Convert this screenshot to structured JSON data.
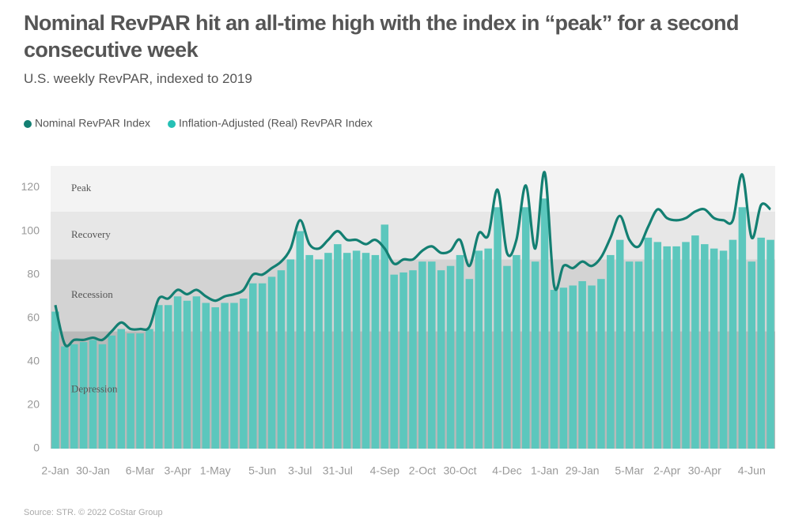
{
  "chart_data": {
    "type": "bar",
    "title": "Nominal RevPAR hit an all-time high with the index in “peak” for a second consecutive week",
    "subtitle": "U.S. weekly RevPAR, indexed to 2019",
    "source": "Source: STR. © 2022 CoStar Group",
    "categories": [
      "2-Jan",
      null,
      null,
      null,
      "30-Jan",
      null,
      null,
      null,
      null,
      "6-Mar",
      null,
      null,
      null,
      "3-Apr",
      null,
      null,
      null,
      "1-May",
      null,
      null,
      null,
      null,
      "5-Jun",
      null,
      null,
      null,
      "3-Jul",
      null,
      null,
      null,
      "31-Jul",
      null,
      null,
      null,
      null,
      "4-Sep",
      null,
      null,
      null,
      "2-Oct",
      null,
      null,
      null,
      "30-Oct",
      null,
      null,
      null,
      null,
      "4-Dec",
      null,
      null,
      null,
      "1-Jan",
      null,
      null,
      null,
      "29-Jan",
      null,
      null,
      null,
      null,
      "5-Mar",
      null,
      null,
      null,
      "2-Apr",
      null,
      null,
      null,
      "30-Apr",
      null,
      null,
      null,
      null,
      "4-Jun",
      null,
      null
    ],
    "series": [
      {
        "name": "Nominal RevPAR Index",
        "type": "line",
        "color": "#137f72",
        "values": [
          66,
          48,
          50,
          50,
          51,
          50,
          54,
          58,
          55,
          55,
          56,
          69,
          69,
          73,
          71,
          73,
          70,
          68,
          70,
          71,
          73,
          80,
          80,
          83,
          86,
          92,
          105,
          94,
          92,
          96,
          100,
          96,
          96,
          94,
          96,
          92,
          85,
          87,
          87,
          91,
          93,
          90,
          91,
          96,
          84,
          99,
          98,
          119,
          90,
          96,
          121,
          92,
          127,
          75,
          84,
          83,
          86,
          84,
          88,
          97,
          107,
          96,
          93,
          102,
          110,
          106,
          105,
          106,
          109,
          110,
          106,
          105,
          105,
          126,
          97,
          112,
          110
        ]
      },
      {
        "name": "Inflation-Adjusted (Real) RevPAR Index",
        "type": "bar",
        "color": "#5cc7bd",
        "values": [
          63,
          47,
          48,
          49,
          50,
          48,
          52,
          55,
          53,
          53,
          55,
          66,
          66,
          70,
          68,
          70,
          67,
          65,
          67,
          67,
          69,
          76,
          76,
          79,
          82,
          87,
          100,
          89,
          87,
          90,
          94,
          90,
          91,
          90,
          89,
          103,
          80,
          81,
          82,
          86,
          86,
          82,
          84,
          89,
          78,
          91,
          92,
          111,
          84,
          89,
          111,
          86,
          115,
          73,
          74,
          75,
          77,
          75,
          78,
          89,
          96,
          86,
          86,
          97,
          95,
          93,
          93,
          95,
          98,
          94,
          92,
          91,
          96,
          111,
          86,
          97,
          96
        ]
      }
    ],
    "zones": [
      {
        "label": "Depression",
        "from": 0,
        "to": 54,
        "color": "#b9b9b9"
      },
      {
        "label": "Recession",
        "from": 54,
        "to": 87,
        "color": "#d3d3d3"
      },
      {
        "label": "Recovery",
        "from": 87,
        "to": 109,
        "color": "#e7e7e7"
      },
      {
        "label": "Peak",
        "from": 109,
        "to": 130,
        "color": "#f3f3f3"
      }
    ],
    "ylim": [
      0,
      130
    ],
    "yticks": [
      0,
      20,
      40,
      60,
      80,
      100,
      120
    ],
    "grid": false
  }
}
